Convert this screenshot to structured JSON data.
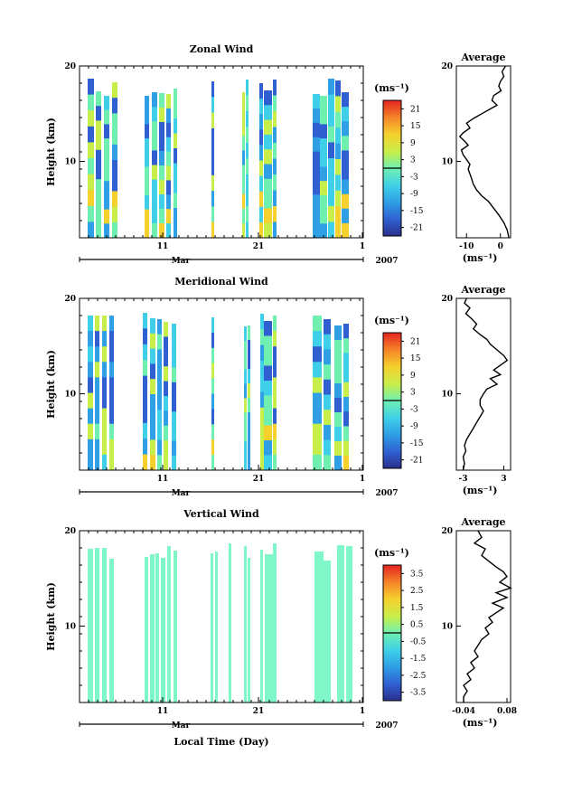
{
  "chart_data": [
    {
      "type": "heatmap",
      "title": "Zonal Wind",
      "ylabel": "Height (km)",
      "yticks": [
        "20",
        "10"
      ],
      "ylim": [
        2,
        20
      ],
      "xticks": [
        "11",
        "21",
        "1"
      ],
      "xlabel_month": "Mar",
      "year": "2007",
      "colorbar": {
        "unit": "(ms⁻¹)",
        "ticks": [
          "21",
          "15",
          "9",
          "3",
          "-3",
          "-9",
          "-15",
          "-21"
        ],
        "range": [
          -24,
          24
        ]
      },
      "average": {
        "title": "Average",
        "yticks": [
          "20",
          "10"
        ],
        "xticks": [
          "-10",
          "0"
        ],
        "xlabel": "(ms⁻¹)",
        "xlim": [
          -13,
          3
        ],
        "x": [
          1.5,
          0.5,
          1.0,
          0.0,
          -0.5,
          0.2,
          -2.0,
          -2.5,
          -1.0,
          -3.0,
          -5.5,
          -8.0,
          -10.0,
          -9.0,
          -11.0,
          -12.0,
          -10.5,
          -9.5,
          -11.5,
          -11.0,
          -10.0,
          -9.0,
          -9.5,
          -9.0,
          -8.5,
          -8.0,
          -7.0,
          -5.5,
          -3.5,
          -2.0,
          -0.5,
          1.0,
          2.0,
          2.5
        ],
        "y": [
          20.0,
          19.4,
          18.9,
          18.4,
          17.9,
          17.4,
          16.9,
          16.4,
          15.9,
          15.5,
          15.0,
          14.5,
          14.0,
          13.5,
          13.0,
          12.6,
          12.1,
          11.7,
          11.2,
          10.7,
          10.2,
          9.7,
          9.2,
          8.7,
          8.2,
          7.6,
          7.0,
          6.4,
          5.8,
          5.1,
          4.4,
          3.6,
          2.8,
          2.0
        ]
      }
    },
    {
      "type": "heatmap",
      "title": "Meridional Wind",
      "ylabel": "Height (km)",
      "yticks": [
        "20",
        "10"
      ],
      "ylim": [
        2,
        20
      ],
      "xticks": [
        "11",
        "21",
        "1"
      ],
      "xlabel_month": "Mar",
      "year": "2007",
      "colorbar": {
        "unit": "(ms⁻¹)",
        "ticks": [
          "21",
          "15",
          "9",
          "3",
          "-3",
          "-9",
          "-15",
          "-21"
        ],
        "range": [
          -24,
          24
        ]
      },
      "average": {
        "title": "Average",
        "yticks": [
          "20",
          "10"
        ],
        "xticks": [
          "-3",
          "3"
        ],
        "xlabel": "(ms⁻¹)",
        "xlim": [
          -4,
          4
        ],
        "x": [
          -2.5,
          -2.8,
          -2.0,
          -2.6,
          -1.8,
          -1.0,
          -1.5,
          -0.5,
          0.5,
          1.0,
          2.0,
          3.0,
          3.5,
          2.5,
          1.5,
          2.5,
          1.0,
          2.0,
          0.5,
          0.0,
          -0.5,
          -0.5,
          0.0,
          -0.5,
          -1.0,
          -1.5,
          -2.0,
          -2.5,
          -2.8,
          -2.6,
          -3.0,
          -2.8,
          -3.0
        ],
        "y": [
          20.0,
          19.5,
          19.0,
          18.4,
          17.9,
          17.3,
          16.8,
          16.2,
          15.7,
          15.2,
          14.6,
          14.0,
          13.5,
          13.0,
          12.5,
          12.0,
          11.6,
          11.0,
          10.5,
          10.0,
          9.4,
          8.8,
          8.2,
          7.6,
          7.0,
          6.4,
          5.8,
          5.2,
          4.6,
          4.0,
          3.4,
          2.7,
          2.0
        ]
      }
    },
    {
      "type": "heatmap",
      "title": "Vertical Wind",
      "ylabel": "Height (km)",
      "yticks": [
        "20",
        "10"
      ],
      "ylim": [
        2,
        20
      ],
      "xticks": [
        "11",
        "21",
        "1"
      ],
      "xlabel_month": "Mar",
      "year": "2007",
      "colorbar": {
        "unit": "(ms⁻¹)",
        "ticks": [
          "3.5",
          "2.5",
          "1.5",
          "0.5",
          "-0.5",
          "-1.5",
          "-2.5",
          "-3.5"
        ],
        "range": [
          -4,
          4
        ]
      },
      "average": {
        "title": "Average",
        "yticks": [
          "20",
          "10"
        ],
        "xticks": [
          "-0.04",
          "0.08"
        ],
        "xlabel": "(ms⁻¹)",
        "xlim": [
          -0.06,
          0.09
        ],
        "x": [
          0.0,
          0.01,
          -0.01,
          0.02,
          0.01,
          0.03,
          0.05,
          0.07,
          0.08,
          0.06,
          0.09,
          0.05,
          0.08,
          0.04,
          0.07,
          0.05,
          0.03,
          0.04,
          0.02,
          0.03,
          0.01,
          0.0,
          -0.01,
          0.0,
          -0.02,
          -0.01,
          -0.03,
          -0.02,
          -0.04,
          -0.03,
          -0.04,
          -0.04
        ],
        "y": [
          20.0,
          19.3,
          18.7,
          18.1,
          17.4,
          16.8,
          16.2,
          15.7,
          15.2,
          14.6,
          14.0,
          13.5,
          13.0,
          12.4,
          11.9,
          11.4,
          10.9,
          10.4,
          9.8,
          9.2,
          8.6,
          8.0,
          7.4,
          6.8,
          6.2,
          5.6,
          5.0,
          4.4,
          3.8,
          3.2,
          2.6,
          2.0
        ]
      }
    }
  ],
  "x_axis_title": "Local Time (Day)"
}
